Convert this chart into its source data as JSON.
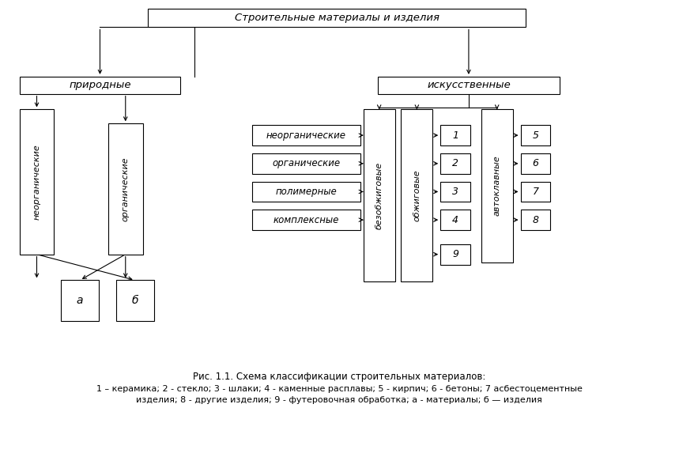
{
  "title_box": "Строительные материалы и изделия",
  "prirodnye": "природные",
  "iskusstvennye": "искусственные",
  "neorg_left": "неорганические",
  "org_left": "органические",
  "a_box": "а",
  "b_box": "б",
  "neorg_right": "неорганические",
  "org_right": "органические",
  "polimernye": "полимерные",
  "kompleksnye": "комплексные",
  "bezobzhigovye": "безобжиговые",
  "obzhigovye": "обжиговые",
  "avtoklav": "автоклавные",
  "caption_line1": "Рис. 1.1. Схема классификации строительных материалов:",
  "caption_line2": "1 – керамика; 2 - стекло; 3 - шлаки; 4 - каменные расплавы; 5 - кирпич; 6 - бетоны; 7 асбестоцементные",
  "caption_line3": "изделия; 8 - другие изделия; 9 - футеровочная обработка; а - материалы; б — изделия",
  "bg_color": "#ffffff",
  "box_color": "#ffffff",
  "line_color": "#000000"
}
